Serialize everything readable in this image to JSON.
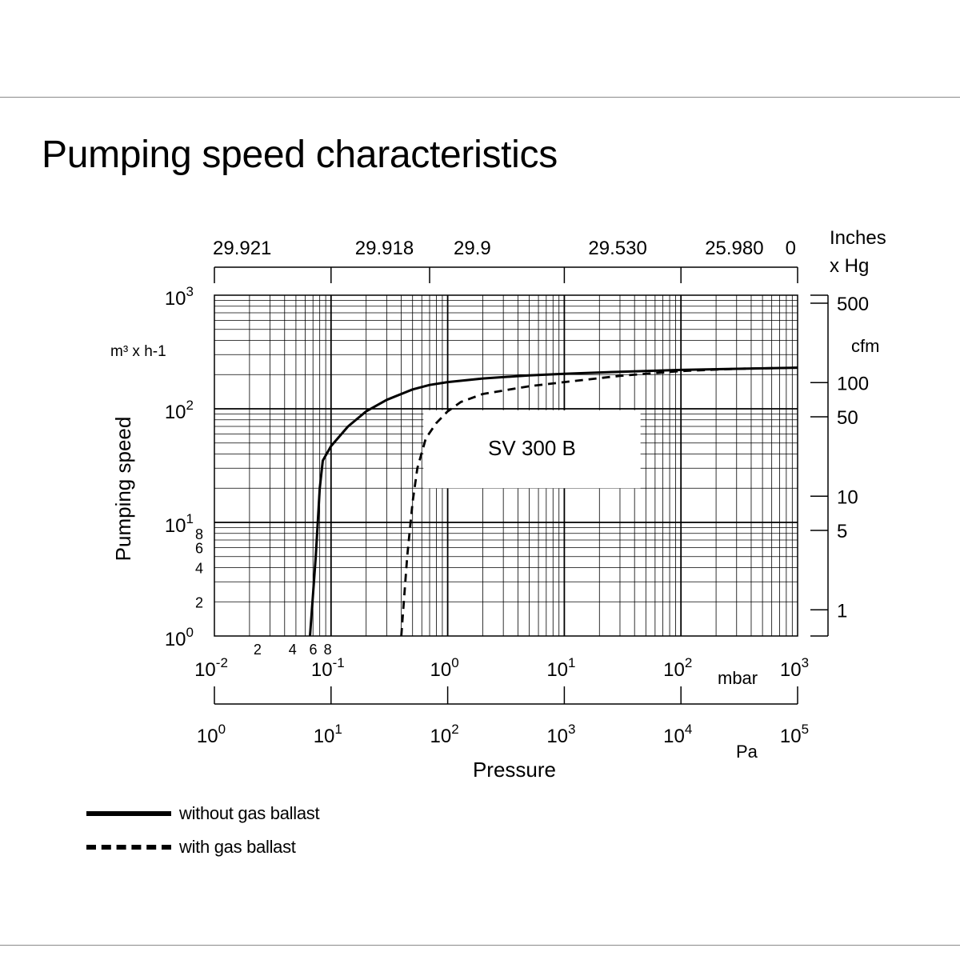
{
  "page": {
    "title": "Pumping speed characteristics"
  },
  "chart_data": {
    "type": "line",
    "x_scale": "log",
    "y_scale": "log",
    "xlim_mbar": [
      0.01,
      1000
    ],
    "ylim_m3h": [
      1,
      1000
    ],
    "grid": true,
    "ylabel": "Pumping speed",
    "y_unit": "m³ x h-1",
    "xlabel": "Pressure",
    "x_unit_mbar": "mbar",
    "x_unit_pa": "Pa",
    "inner_label": "SV 300 B",
    "x_ticks_mbar": [
      {
        "v": 0.01,
        "base": "10",
        "exp": "-2"
      },
      {
        "v": 0.1,
        "base": "10",
        "exp": "-1"
      },
      {
        "v": 1,
        "base": "10",
        "exp": "0"
      },
      {
        "v": 10,
        "base": "10",
        "exp": "1"
      },
      {
        "v": 100,
        "base": "10",
        "exp": "2"
      },
      {
        "v": 1000,
        "base": "10",
        "exp": "3"
      }
    ],
    "x_minor_labels_mbar": [
      {
        "v": 0.02,
        "label": "2"
      },
      {
        "v": 0.04,
        "label": "4"
      },
      {
        "v": 0.06,
        "label": "6"
      },
      {
        "v": 0.08,
        "label": "8"
      }
    ],
    "x_ticks_pa": [
      {
        "v": 0.01,
        "base": "10",
        "exp": "0"
      },
      {
        "v": 0.1,
        "base": "10",
        "exp": "1"
      },
      {
        "v": 1,
        "base": "10",
        "exp": "2"
      },
      {
        "v": 10,
        "base": "10",
        "exp": "3"
      },
      {
        "v": 100,
        "base": "10",
        "exp": "4"
      },
      {
        "v": 1000,
        "base": "10",
        "exp": "5"
      }
    ],
    "x_ticks_inhg": {
      "unit_line1": "Inches",
      "unit_line2": "x Hg",
      "ticks": [
        {
          "v": 0.01,
          "label": "29.921"
        },
        {
          "v": 0.1,
          "label": "29.918"
        },
        {
          "v": 0.7,
          "label": "29.9"
        },
        {
          "v": 10,
          "label": "29.530"
        },
        {
          "v": 100,
          "label": "25.980"
        },
        {
          "v": 1000,
          "label": "0"
        }
      ]
    },
    "y_ticks_m3h": [
      {
        "v": 1,
        "base": "10",
        "exp": "0"
      },
      {
        "v": 10,
        "base": "10",
        "exp": "1"
      },
      {
        "v": 100,
        "base": "10",
        "exp": "2"
      },
      {
        "v": 1000,
        "base": "10",
        "exp": "3"
      }
    ],
    "y_minor_labels_m3h": [
      {
        "v": 2,
        "label": "2"
      },
      {
        "v": 4,
        "label": "4"
      },
      {
        "v": 6,
        "label": "6"
      },
      {
        "v": 8,
        "label": "8"
      }
    ],
    "y_ticks_cfm": {
      "unit": "cfm",
      "ticks": [
        {
          "v": 1.7,
          "label": "1"
        },
        {
          "v": 8.5,
          "label": "5"
        },
        {
          "v": 17,
          "label": "10"
        },
        {
          "v": 85,
          "label": "50"
        },
        {
          "v": 170,
          "label": "100"
        },
        {
          "v": 850,
          "label": "500"
        }
      ]
    },
    "series": [
      {
        "name": "without gas ballast",
        "style": "solid",
        "points": [
          [
            0.066,
            1
          ],
          [
            0.074,
            5
          ],
          [
            0.08,
            20
          ],
          [
            0.085,
            35
          ],
          [
            0.1,
            47
          ],
          [
            0.14,
            70
          ],
          [
            0.2,
            95
          ],
          [
            0.3,
            120
          ],
          [
            0.5,
            148
          ],
          [
            0.7,
            162
          ],
          [
            1,
            172
          ],
          [
            2,
            185
          ],
          [
            5,
            197
          ],
          [
            10,
            203
          ],
          [
            30,
            212
          ],
          [
            100,
            220
          ],
          [
            300,
            225
          ],
          [
            1000,
            230
          ]
        ]
      },
      {
        "name": "with gas ballast",
        "style": "dashed",
        "points": [
          [
            0.4,
            1
          ],
          [
            0.45,
            5
          ],
          [
            0.5,
            15
          ],
          [
            0.55,
            30
          ],
          [
            0.65,
            55
          ],
          [
            0.8,
            75
          ],
          [
            1,
            95
          ],
          [
            1.3,
            115
          ],
          [
            2,
            135
          ],
          [
            5,
            158
          ],
          [
            10,
            172
          ],
          [
            30,
            195
          ],
          [
            100,
            215
          ],
          [
            300,
            225
          ],
          [
            1000,
            230
          ]
        ]
      }
    ]
  }
}
